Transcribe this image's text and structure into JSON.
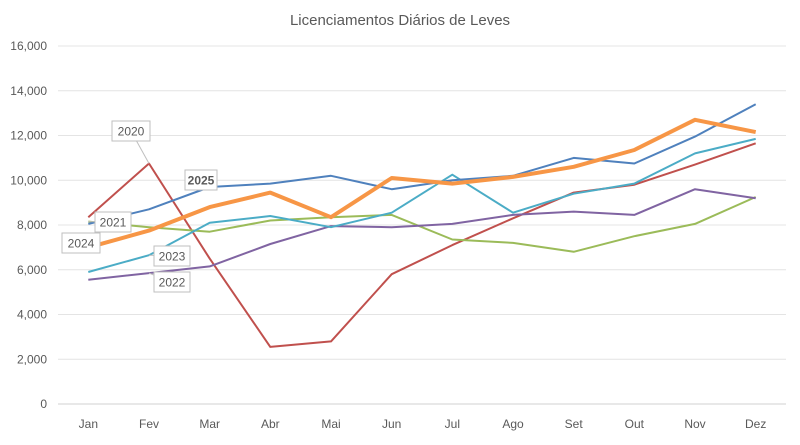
{
  "chart_data": {
    "type": "line",
    "title": "Licenciamentos Diários de Leves",
    "xlabel": "",
    "ylabel": "",
    "ylim": [
      0,
      16000
    ],
    "yticks": [
      0,
      2000,
      4000,
      6000,
      8000,
      10000,
      12000,
      14000,
      16000
    ],
    "ytick_labels": [
      "0",
      "2,000",
      "4,000",
      "6,000",
      "8,000",
      "10,000",
      "12,000",
      "14,000",
      "16,000"
    ],
    "grid": true,
    "categories": [
      "Jan",
      "Fev",
      "Mar",
      "Abr",
      "Mai",
      "Jun",
      "Jul",
      "Ago",
      "Set",
      "Out",
      "Nov",
      "Dez"
    ],
    "series": [
      {
        "name": "2020",
        "color": "#c0504d",
        "values": [
          8350,
          10750,
          6500,
          2550,
          2800,
          5800,
          7100,
          8300,
          9450,
          9800,
          10700,
          11650
        ]
      },
      {
        "name": "2021",
        "color": "#9bbb59",
        "values": [
          8150,
          7900,
          7700,
          8200,
          8350,
          8450,
          7350,
          7200,
          6800,
          7500,
          8050,
          9250
        ]
      },
      {
        "name": "2022",
        "color": "#8064a2",
        "values": [
          5550,
          5850,
          6150,
          7150,
          7950,
          7900,
          8050,
          8450,
          8600,
          8450,
          9600,
          9200
        ]
      },
      {
        "name": "2023",
        "color": "#4bacc6",
        "values": [
          5900,
          6650,
          8100,
          8400,
          7900,
          8550,
          10250,
          8550,
          9400,
          9850,
          11200,
          11850
        ]
      },
      {
        "name": "2025",
        "color": "#4f81bd",
        "values": [
          8050,
          8700,
          9700,
          9850,
          10200,
          9600,
          10000,
          10200,
          11000,
          10750,
          11950,
          13400
        ]
      },
      {
        "name": "2024",
        "color": "#f79646",
        "values": [
          7000,
          7750,
          8800,
          9450,
          8350,
          10100,
          9850,
          10150,
          10600,
          11350,
          12700,
          12150
        ]
      }
    ]
  }
}
